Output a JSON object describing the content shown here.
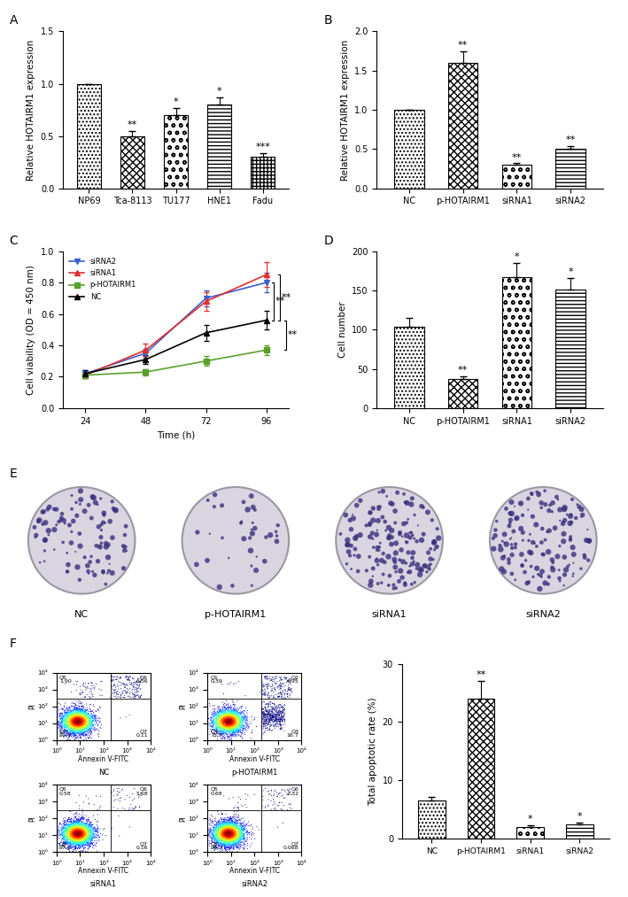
{
  "chart_data": [
    {
      "panel": "A",
      "type": "bar",
      "categories": [
        "NP69",
        "Tca-8113",
        "TU177",
        "HNE1",
        "Fadu"
      ],
      "values": [
        1.0,
        0.5,
        0.7,
        0.8,
        0.3
      ],
      "errors": [
        0.0,
        0.05,
        0.07,
        0.07,
        0.04
      ],
      "significance": [
        null,
        "**",
        "*",
        "*",
        "***"
      ],
      "y_label": "Relative HOTAIRM1 expression",
      "ylim": [
        0,
        1.5
      ],
      "yticks": [
        {
          "value": 0,
          "label": "0.0"
        },
        {
          "value": 0.5,
          "label": "0.5"
        },
        {
          "value": 1.0,
          "label": "1.0"
        },
        {
          "value": 1.5,
          "label": "1.5"
        }
      ]
    },
    {
      "panel": "B",
      "type": "bar",
      "categories": [
        "NC",
        "p-HOTAIRM1",
        "siRNA1",
        "siRNA2"
      ],
      "values": [
        1.0,
        1.6,
        0.3,
        0.5
      ],
      "errors": [
        0.0,
        0.15,
        0.02,
        0.04
      ],
      "significance": [
        null,
        "**",
        "**",
        "**"
      ],
      "y_label": "Relative HOTAIRM1 expression",
      "ylim": [
        0,
        2.0
      ],
      "yticks": [
        {
          "value": 0,
          "label": "0.0"
        },
        {
          "value": 0.5,
          "label": "0.5"
        },
        {
          "value": 1.0,
          "label": "1.0"
        },
        {
          "value": 1.5,
          "label": "1.5"
        },
        {
          "value": 2.0,
          "label": "2.0"
        }
      ]
    },
    {
      "panel": "C",
      "type": "line",
      "x": [
        24,
        48,
        72,
        96
      ],
      "x_label": "Time (h)",
      "y_label": "Cell viability (OD = 450 nm)",
      "xlim": [
        15,
        105
      ],
      "xticks": [
        24,
        48,
        72,
        96
      ],
      "ylim": [
        0,
        1.0
      ],
      "yticks": [
        {
          "value": 0,
          "label": "0.0"
        },
        {
          "value": 0.2,
          "label": "0.2"
        },
        {
          "value": 0.4,
          "label": "0.4"
        },
        {
          "value": 0.6,
          "label": "0.6"
        },
        {
          "value": 0.8,
          "label": "0.8"
        },
        {
          "value": 1.0,
          "label": "1.0"
        }
      ],
      "legend": "upper left",
      "series": [
        {
          "name": "siRNA2",
          "color": "#3a5fcd",
          "marker": "triangle_down",
          "values": [
            0.22,
            0.35,
            0.7,
            0.8
          ],
          "errors": [
            0.02,
            0.03,
            0.05,
            0.06
          ]
        },
        {
          "name": "siRNA1",
          "color": "#e03030",
          "marker": "triangle_up",
          "values": [
            0.21,
            0.37,
            0.68,
            0.85
          ],
          "errors": [
            0.02,
            0.04,
            0.06,
            0.08
          ]
        },
        {
          "name": "p-HOTAIRM1",
          "color": "#5aa02c",
          "marker": "square",
          "values": [
            0.21,
            0.23,
            0.3,
            0.37
          ],
          "errors": [
            0.02,
            0.02,
            0.03,
            0.03
          ]
        },
        {
          "name": "NC",
          "color": "#000000",
          "marker": "triangle_up",
          "values": [
            0.22,
            0.31,
            0.48,
            0.56
          ],
          "errors": [
            0.02,
            0.03,
            0.05,
            0.06
          ]
        }
      ],
      "brackets": [
        {
          "from": 0.8,
          "to": 0.56,
          "text": "**"
        },
        {
          "from": 0.85,
          "to": 0.56,
          "text": "**"
        },
        {
          "from": 0.56,
          "to": 0.37,
          "text": "**"
        }
      ]
    },
    {
      "panel": "D",
      "type": "bar",
      "categories": [
        "NC",
        "p-HOTAIRM1",
        "siRNA1",
        "siRNA2"
      ],
      "values": [
        104,
        37,
        167,
        151
      ],
      "errors": [
        11,
        4,
        18,
        15
      ],
      "significance": [
        null,
        "**",
        "*",
        "*"
      ],
      "y_label": "Cell number",
      "ylim": [
        0,
        200
      ],
      "yticks": [
        0,
        50,
        100,
        150,
        200
      ]
    },
    {
      "panel": "E",
      "type": "image",
      "labels": [
        "NC",
        "p-HOTAIRM1",
        "siRNA1",
        "siRNA2"
      ]
    },
    {
      "panel": "F",
      "type": "flow_cytometry",
      "x_label": "Annexin V-FITC",
      "y_label": "PI",
      "xlim": [
        1,
        10000
      ],
      "ylim": [
        1,
        10000
      ],
      "gates": {
        "x": 200,
        "y": 300
      },
      "xticks": [
        {
          "value": 1,
          "label": "10⁰"
        },
        {
          "value": 10,
          "label": "10¹"
        },
        {
          "value": 100,
          "label": "10²"
        },
        {
          "value": 1000,
          "label": "10³"
        },
        {
          "value": 10000,
          "label": "10⁴"
        }
      ],
      "yticks": [
        {
          "value": 1,
          "label": "10⁰"
        },
        {
          "value": 10,
          "label": "10¹"
        },
        {
          "value": 100,
          "label": "10²"
        },
        {
          "value": 1000,
          "label": "10³"
        },
        {
          "value": 10000,
          "label": "10⁴"
        }
      ],
      "plots": [
        {
          "name": "NC",
          "quadrants": {
            "upper_left": [
              "Q5",
              "1.90"
            ],
            "upper_right": [
              "Q6",
              "6.56"
            ],
            "lower_left": [
              "Q8",
              "91.4"
            ],
            "lower_right": [
              "Q7",
              "0.11"
            ]
          }
        },
        {
          "name": "p-HOTAIRM1",
          "quadrants": {
            "upper_left": [
              "Q1",
              "0.39"
            ],
            "upper_right": [
              "Q2",
              "6.95"
            ],
            "lower_left": [
              "Q4",
              "75.9"
            ],
            "lower_right": [
              "Q3",
              "16.7"
            ]
          }
        },
        {
          "name": "siRNA1",
          "quadrants": {
            "upper_left": [
              "Q5",
              "0.58"
            ],
            "upper_right": [
              "Q6",
              "1.68"
            ],
            "lower_left": [
              "Q8",
              "97.6"
            ],
            "lower_right": [
              "Q7",
              "0.16"
            ]
          }
        },
        {
          "name": "siRNA2",
          "quadrants": {
            "upper_left": [
              "Q5",
              "0.68"
            ],
            "upper_right": [
              "Q6",
              "2.32"
            ],
            "lower_left": [
              "Q8",
              "96.7"
            ],
            "lower_right": [
              "Q7",
              "0.068"
            ]
          }
        }
      ],
      "bar": {
        "type": "bar",
        "categories": [
          "NC",
          "p-HOTAIRM1",
          "siRNA1",
          "siRNA2"
        ],
        "values": [
          6.5,
          24.0,
          2.0,
          2.4
        ],
        "errors": [
          0.6,
          3.0,
          0.3,
          0.3
        ],
        "significance": [
          null,
          "**",
          "*",
          "*"
        ],
        "y_label": "Total apoptotic rate (%)",
        "ylim": [
          0,
          30
        ],
        "yticks": [
          0,
          10,
          20,
          30
        ]
      }
    }
  ]
}
